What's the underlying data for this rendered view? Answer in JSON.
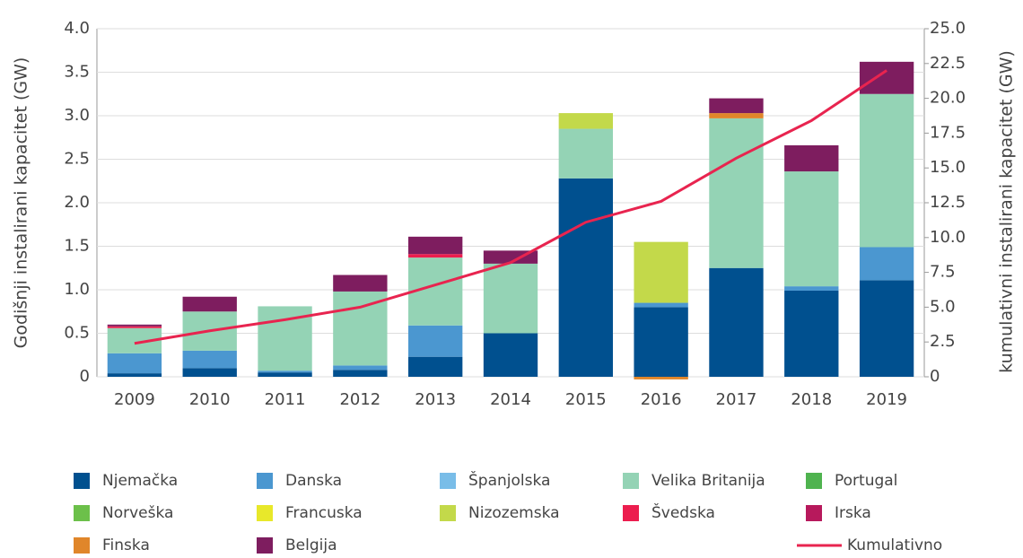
{
  "chart_data": {
    "type": "bar",
    "stacked": true,
    "y_label": "Godišnji instalirani kapacitet (GW)",
    "y2_label": "kumulativni instalirani kapacitet (GW)",
    "categories": [
      "2009",
      "2010",
      "2011",
      "2012",
      "2013",
      "2014",
      "2015",
      "2016",
      "2017",
      "2018",
      "2019"
    ],
    "ylim": [
      0,
      4.0
    ],
    "yticks": [
      0,
      0.5,
      {
        "value": 1.0,
        "label": "1.0"
      },
      1.5,
      {
        "value": 2.0,
        "label": "2.0"
      },
      2.5,
      {
        "value": 3.0,
        "label": "3.0"
      },
      3.5,
      {
        "value": 4.0,
        "label": "4.0"
      }
    ],
    "y2lim": [
      0,
      25.0
    ],
    "y2ticks": [
      0,
      2.5,
      {
        "value": 5.0,
        "label": "5.0"
      },
      7.5,
      {
        "value": 10.0,
        "label": "10.0"
      },
      12.5,
      {
        "value": 15.0,
        "label": "15.0"
      },
      17.5,
      {
        "value": 20.0,
        "label": "20.0"
      },
      22.5,
      {
        "value": 25.0,
        "label": "25.0"
      }
    ],
    "grid": true,
    "series": [
      {
        "name": "Njemačka",
        "color": "#00508f",
        "values": [
          0.04,
          0.1,
          0.05,
          0.08,
          0.23,
          0.5,
          2.28,
          0.8,
          1.25,
          0.99,
          1.11
        ]
      },
      {
        "name": "Danska",
        "color": "#4b97d0",
        "values": [
          0.23,
          0.2,
          0.02,
          0.05,
          0.36,
          null,
          null,
          0.05,
          null,
          0.05,
          0.38
        ]
      },
      {
        "name": "Španjolska",
        "color": "#79bde8",
        "values": [
          null,
          null,
          null,
          null,
          null,
          null,
          null,
          null,
          null,
          null,
          null
        ]
      },
      {
        "name": "Velika Britanija",
        "color": "#94d3b5",
        "values": [
          0.29,
          0.45,
          0.74,
          0.85,
          0.78,
          0.8,
          0.57,
          null,
          1.72,
          1.32,
          1.76
        ]
      },
      {
        "name": "Portugal",
        "color": "#4fb34f",
        "values": [
          null,
          null,
          null,
          null,
          null,
          null,
          null,
          null,
          null,
          null,
          null
        ]
      },
      {
        "name": "Norveška",
        "color": "#6cc04a",
        "values": [
          null,
          null,
          null,
          null,
          null,
          null,
          null,
          null,
          null,
          null,
          null
        ]
      },
      {
        "name": "Francuska",
        "color": "#e8e82a",
        "values": [
          null,
          null,
          null,
          null,
          null,
          null,
          null,
          null,
          null,
          null,
          null
        ]
      },
      {
        "name": "Nizozemska",
        "color": "#c3d94a",
        "values": [
          null,
          null,
          null,
          null,
          null,
          null,
          0.18,
          0.7,
          null,
          null,
          null
        ]
      },
      {
        "name": "Švedska",
        "color": "#ec1d4e",
        "values": [
          0.02,
          null,
          null,
          null,
          0.04,
          null,
          null,
          null,
          null,
          null,
          null
        ]
      },
      {
        "name": "Irska",
        "color": "#b7195c",
        "values": [
          null,
          null,
          null,
          null,
          null,
          null,
          null,
          null,
          null,
          null,
          null
        ]
      },
      {
        "name": "Finska",
        "color": "#e0862a",
        "values": [
          null,
          null,
          null,
          null,
          null,
          null,
          null,
          -0.03,
          0.06,
          null,
          null
        ]
      },
      {
        "name": "Belgija",
        "color": "#7e1d5f",
        "values": [
          0.02,
          0.17,
          null,
          0.19,
          0.2,
          0.15,
          null,
          null,
          0.17,
          0.3,
          0.37
        ]
      },
      {
        "name": "Kumulativno",
        "color": "#e8244f",
        "type": "line",
        "axis": "y2",
        "values": [
          2.4,
          3.3,
          4.1,
          5.0,
          6.6,
          8.2,
          11.1,
          12.6,
          15.7,
          18.4,
          22.0
        ]
      }
    ]
  }
}
